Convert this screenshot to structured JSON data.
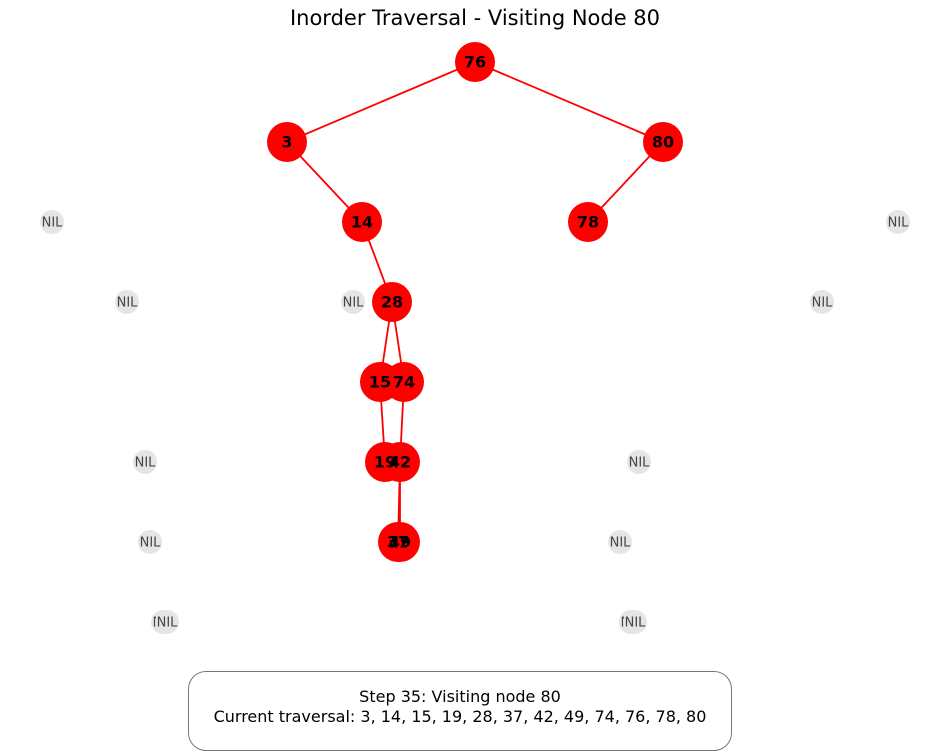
{
  "title": "Inorder Traversal - Visiting Node 80",
  "colors": {
    "node": "#ff0000",
    "edge": "#ff0000",
    "nil_fill": "#e5e5e5",
    "nil_text": "#444444"
  },
  "nodes": [
    {
      "id": "n76",
      "label": "76"
    },
    {
      "id": "n3",
      "label": "3"
    },
    {
      "id": "n80",
      "label": "80"
    },
    {
      "id": "n14",
      "label": "14"
    },
    {
      "id": "n78",
      "label": "78"
    },
    {
      "id": "n28",
      "label": "28"
    },
    {
      "id": "n15",
      "label": "15"
    },
    {
      "id": "n74",
      "label": "74"
    },
    {
      "id": "n19",
      "label": "19"
    },
    {
      "id": "n42",
      "label": "42"
    },
    {
      "id": "n37",
      "label": "37"
    },
    {
      "id": "n49",
      "label": "49"
    }
  ],
  "edges": [
    [
      "n76",
      "n3"
    ],
    [
      "n76",
      "n80"
    ],
    [
      "n3",
      "n14"
    ],
    [
      "n80",
      "n78"
    ],
    [
      "n14",
      "n28"
    ],
    [
      "n28",
      "n15"
    ],
    [
      "n28",
      "n74"
    ],
    [
      "n15",
      "n19"
    ],
    [
      "n74",
      "n42"
    ],
    [
      "n42",
      "n37"
    ],
    [
      "n42",
      "n49"
    ]
  ],
  "nil_label": "NIL",
  "nil_count": 14,
  "status": {
    "line1": "Step 35: Visiting node 80",
    "line2": "Current traversal: 3, 14, 15, 19, 28, 37, 42, 49, 74, 76, 78, 80"
  }
}
